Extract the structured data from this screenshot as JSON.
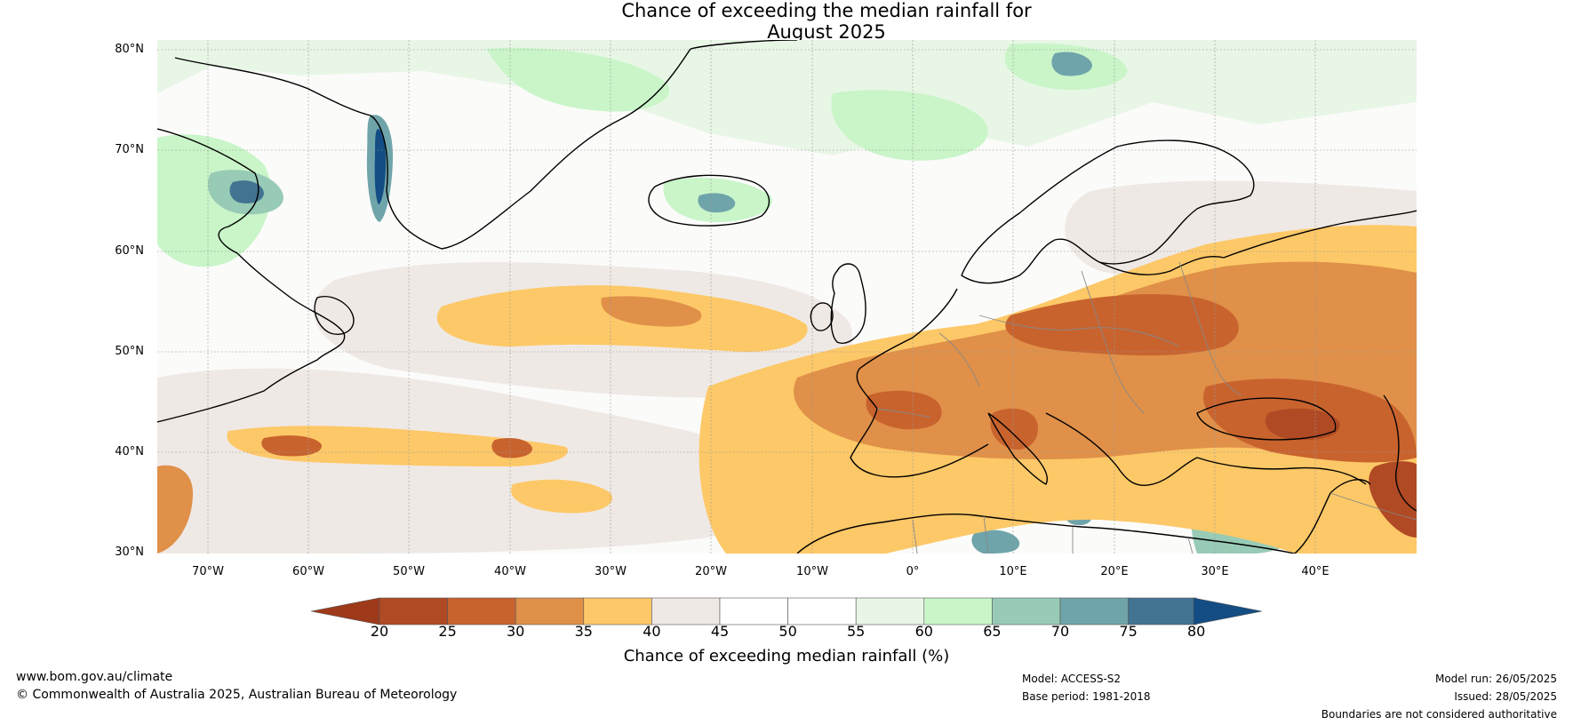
{
  "title": {
    "line1": "Chance of exceeding the median rainfall for",
    "line2": "August 2025"
  },
  "map": {
    "projection": "equirectangular",
    "extent": {
      "lon_min": -75,
      "lon_max": 50,
      "lat_min": 30,
      "lat_max": 81
    },
    "lat_ticks": [
      "80°N",
      "70°N",
      "60°N",
      "50°N",
      "40°N",
      "30°N"
    ],
    "lon_ticks": [
      "70°W",
      "60°W",
      "50°W",
      "40°W",
      "30°W",
      "20°W",
      "10°W",
      "0°",
      "10°E",
      "20°E",
      "30°E",
      "40°E"
    ],
    "colors": {
      "dry_20": "#9e3a1a",
      "dry_25": "#b04a24",
      "dry_30": "#c8632e",
      "dry_35": "#e09048",
      "dry_40": "#fdc867",
      "neutral_45": "#efe9e5",
      "neutral_50": "#ffffff",
      "neutral_55": "#ffffff",
      "wet_60": "#e8f6e6",
      "wet_65": "#c9f5c9",
      "wet_70": "#98cbb5",
      "wet_75": "#6fa4aa",
      "wet_80": "#427492",
      "wet_max": "#134d84",
      "coast": "#000000",
      "border": "#888888"
    }
  },
  "colorbar": {
    "ticks": [
      "20",
      "25",
      "30",
      "35",
      "40",
      "45",
      "50",
      "55",
      "60",
      "65",
      "70",
      "75",
      "80"
    ],
    "fills": [
      "#b04a24",
      "#c8632e",
      "#e09048",
      "#fdc867",
      "#efe9e5",
      "#ffffff",
      "#ffffff",
      "#e8f6e6",
      "#c9f5c9",
      "#98cbb5",
      "#6fa4aa",
      "#427492"
    ],
    "extend_low": "#9e3a1a",
    "extend_high": "#134d84",
    "label": "Chance of exceeding median rainfall (%)"
  },
  "footer": {
    "website": "www.bom.gov.au/climate",
    "copyright": "© Commonwealth of Australia 2025, Australian Bureau of Meteorology",
    "model": "Model: ACCESS-S2",
    "base_period": "Base period: 1981-2018",
    "model_run": "Model run: 26/05/2025",
    "issued": "Issued: 28/05/2025",
    "disclaimer": "Boundaries are not considered authoritative"
  }
}
